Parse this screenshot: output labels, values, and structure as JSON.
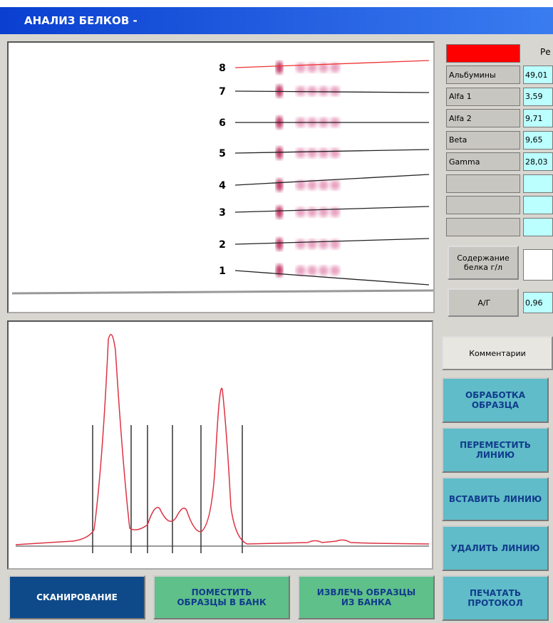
{
  "window": {
    "title": "АНАЛИЗ БЕЛКОВ -"
  },
  "gel": {
    "lanes": [
      "8",
      "7",
      "6",
      "5",
      "4",
      "3",
      "2",
      "1"
    ]
  },
  "fractions": {
    "header": "Ре",
    "rows": [
      [
        "Альбумины",
        "49,01"
      ],
      [
        "Alfa 1",
        "3,59"
      ],
      [
        "Alfa 2",
        "9,71"
      ],
      [
        "Beta",
        "9,65"
      ],
      [
        "Gamma",
        "28,03"
      ]
    ]
  },
  "protein": {
    "label": "Содержание белка г/л"
  },
  "ag": {
    "label": "А/Г",
    "value": "0,96"
  },
  "comment": {
    "label": "Комментарии"
  },
  "side_buttons": [
    "ОБРАБОТКА ОБРАЗЦА",
    "ПЕРЕМЕСТИТЬ ЛИНИЮ",
    "ВСТАВИТЬ ЛИНИЮ",
    "УДАЛИТЬ ЛИНИЮ",
    "ПЕЧАТАТЬ ПРОТОКОЛ"
  ],
  "bottom_buttons": [
    "СКАНИРОВАНИЕ",
    "ПОМЕСТИТЬ ОБРАЗЦЫ В БАНК",
    "ИЗВЛЕЧЬ ОБРАЗЦЫ ИЗ БАНКА"
  ]
}
